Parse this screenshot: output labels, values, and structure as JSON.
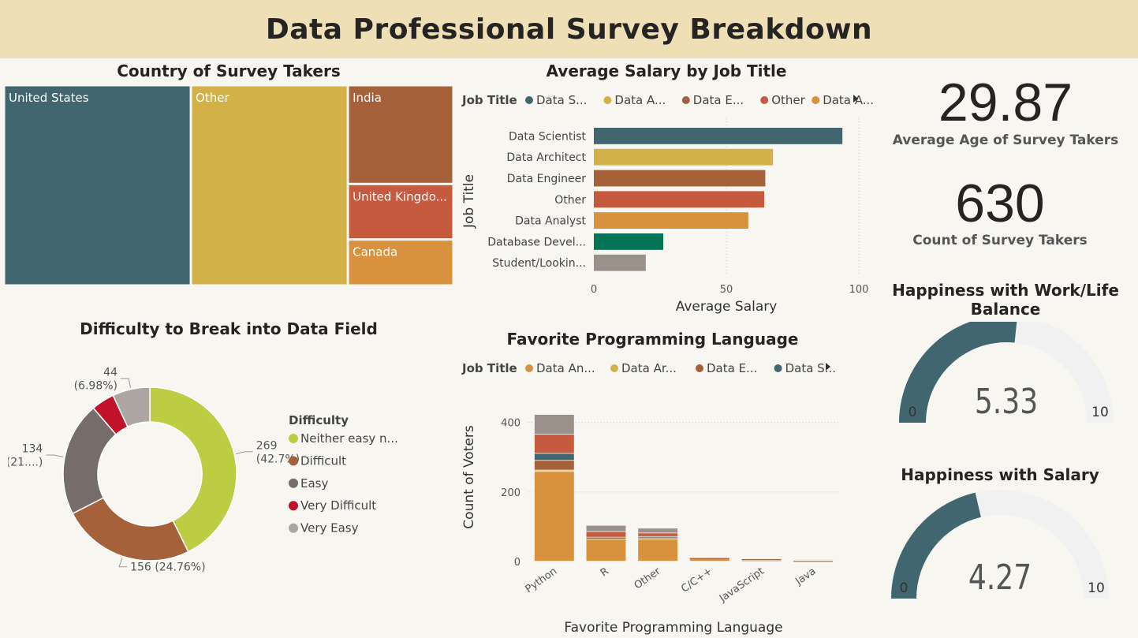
{
  "header": {
    "title": "Data Professional Survey Breakdown"
  },
  "colors": {
    "teal": "#41666f",
    "mustard": "#d3b149",
    "brown": "#a5613a",
    "red": "#c65a3e",
    "orange": "#d8913c",
    "green": "#047356",
    "gray": "#9a918a",
    "lime": "#bccd44",
    "darkgray": "#766d6a",
    "crimson": "#c0132a",
    "lightgray": "#ada5a1",
    "gauge_track": "#f1f1f1"
  },
  "treemap": {
    "title": "Country of Survey Takers",
    "chart_data": {
      "type": "treemap",
      "title": "Country of Survey Takers",
      "items": [
        {
          "label": "United States",
          "value": 262,
          "color": "#41666f"
        },
        {
          "label": "Other",
          "value": 220,
          "color": "#d3b149"
        },
        {
          "label": "India",
          "value": 73,
          "color": "#a5613a"
        },
        {
          "label": "United Kingdo...",
          "value": 41,
          "color": "#c65a3e"
        },
        {
          "label": "Canada",
          "value": 34,
          "color": "#d8913c"
        }
      ]
    }
  },
  "salary": {
    "title": "Average Salary by Job Title",
    "legend_title": "Job Title",
    "legend_items": [
      {
        "label": "Data S...",
        "color": "#41666f"
      },
      {
        "label": "Data A...",
        "color": "#d3b149"
      },
      {
        "label": "Data E...",
        "color": "#a5613a"
      },
      {
        "label": "Other",
        "color": "#c65a3e"
      },
      {
        "label": "Data A...",
        "color": "#d8913c"
      }
    ],
    "chart_data": {
      "type": "bar",
      "orientation": "horizontal",
      "title": "Average Salary by Job Title",
      "categories": [
        "Data Scientist",
        "Data Architect",
        "Data Engineer",
        "Other",
        "Data Analyst",
        "Database Devel...",
        "Student/Lookin..."
      ],
      "values": [
        93.8,
        67.6,
        64.7,
        64.3,
        58.3,
        26.2,
        19.6
      ],
      "colors": [
        "#41666f",
        "#d3b149",
        "#a5613a",
        "#c65a3e",
        "#d8913c",
        "#047356",
        "#9a918a"
      ],
      "xlabel": "Average Salary",
      "ylabel": "Job Title",
      "xlim": [
        0,
        100
      ],
      "xticks": [
        "0",
        "50",
        "100"
      ],
      "grid": "vertical dotted"
    }
  },
  "kpis": {
    "age": {
      "value": "29.87",
      "label": "Average Age of Survey Takers"
    },
    "count": {
      "value": "630",
      "label": "Count of Survey Takers"
    }
  },
  "donut": {
    "title": "Difficulty to Break into Data Field",
    "legend_title": "Difficulty",
    "legend_items": [
      "Neither easy n...",
      "Difficult",
      "Easy",
      "Very Difficult",
      "Very Easy"
    ],
    "chart_data": {
      "type": "pie",
      "donut": true,
      "title": "Difficulty to Break into Data Field",
      "slices": [
        {
          "label": "Neither easy n...",
          "value": 269,
          "pct": 42.7,
          "color": "#bccd44",
          "data_label": [
            "269",
            "(42.7%)"
          ]
        },
        {
          "label": "Difficult",
          "value": 156,
          "pct": 24.76,
          "color": "#a5613a",
          "data_label": [
            "156 (24.76%)"
          ]
        },
        {
          "label": "Easy",
          "value": 134,
          "pct": 21.27,
          "color": "#766d6a",
          "data_label": [
            "134",
            "(21....)"
          ]
        },
        {
          "label": "Very Difficult",
          "value": 27,
          "pct": 4.29,
          "color": "#c0132a",
          "data_label": []
        },
        {
          "label": "Very Easy",
          "value": 44,
          "pct": 6.98,
          "color": "#ada5a1",
          "data_label": [
            "44",
            "(6.98%)"
          ]
        }
      ]
    }
  },
  "languages": {
    "title": "Favorite Programming Language",
    "legend_title": "Job Title",
    "legend_items": [
      {
        "label": "Data An...",
        "color": "#d8913c"
      },
      {
        "label": "Data Ar...",
        "color": "#d3b149"
      },
      {
        "label": "Data E...",
        "color": "#a5613a"
      },
      {
        "label": "Data S...",
        "color": "#41666f"
      }
    ],
    "chart_data": {
      "type": "bar",
      "stacked": true,
      "title": "Favorite Programming Language",
      "categories": [
        "Python",
        "R",
        "Other",
        "C/C++",
        "JavaScript",
        "Java"
      ],
      "xlabel": "Favorite Programming Language",
      "ylabel": "Count of Voters",
      "ylim": [
        0,
        440
      ],
      "yticks": [
        0,
        200,
        400
      ],
      "series": [
        {
          "name": "Data An...",
          "color": "#d8913c",
          "values": [
            258,
            62,
            62,
            8,
            3,
            1
          ]
        },
        {
          "name": "Data Ar...",
          "color": "#d3b149",
          "values": [
            4,
            2,
            2,
            0,
            0,
            0
          ]
        },
        {
          "name": "Data E...",
          "color": "#a5613a",
          "values": [
            28,
            3,
            3,
            1,
            3,
            1
          ]
        },
        {
          "name": "Data S...",
          "color": "#41666f",
          "values": [
            20,
            2,
            4,
            0,
            0,
            0
          ]
        },
        {
          "color": "#c65a3e",
          "values": [
            55,
            16,
            10,
            1,
            1,
            0
          ]
        },
        {
          "color": "#9a918a",
          "values": [
            57,
            18,
            14,
            0,
            0,
            0
          ]
        }
      ]
    }
  },
  "gauge_worklife": {
    "title": "Happiness with Work/Life Balance",
    "chart_data": {
      "type": "gauge",
      "value": 5.33,
      "min": 0,
      "max": 10,
      "value_label": "5.33",
      "min_label": "0",
      "max_label": "10"
    }
  },
  "gauge_salary": {
    "title": "Happiness with Salary",
    "chart_data": {
      "type": "gauge",
      "value": 4.27,
      "min": 0,
      "max": 10,
      "value_label": "4.27",
      "min_label": "0",
      "max_label": "10"
    }
  }
}
